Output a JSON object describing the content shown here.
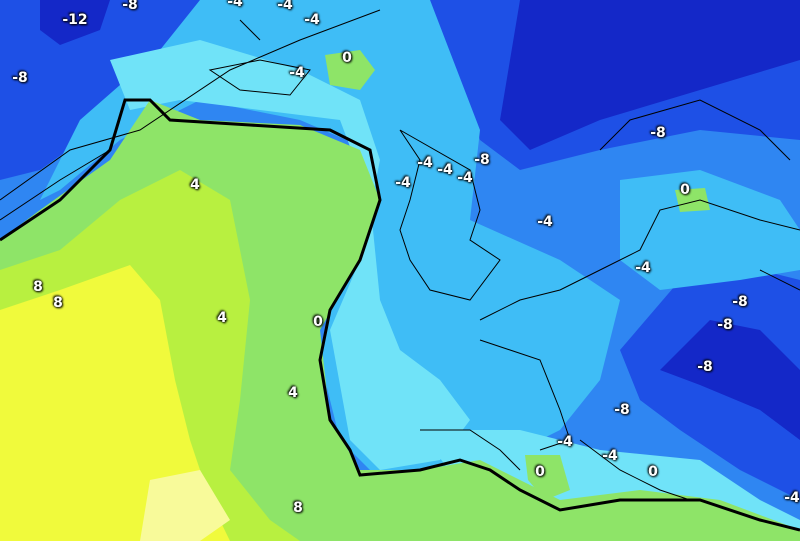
{
  "map": {
    "colors": {
      "very_cold": "#1428c8",
      "cold": "#1e50e6",
      "cool": "#2f86f2",
      "mild_cold": "#3fbdf6",
      "near_zero": "#70e3f8",
      "green": "#8ee468",
      "yellow_green": "#b8f040",
      "yellow": "#f0fa3c",
      "contour_zero": "#000000"
    },
    "labels": [
      "-12",
      "-8",
      "-4",
      "-4",
      "-4",
      "0",
      "-4",
      "-8",
      "-8",
      "-4",
      "-4",
      "-8",
      "-4",
      "-4",
      "0",
      "4",
      "-4",
      "-4",
      "8",
      "8",
      "-8",
      "4",
      "0",
      "-8",
      "-8",
      "4",
      "-8",
      "-4",
      "-4",
      "0",
      "0",
      "-4",
      "8"
    ]
  }
}
